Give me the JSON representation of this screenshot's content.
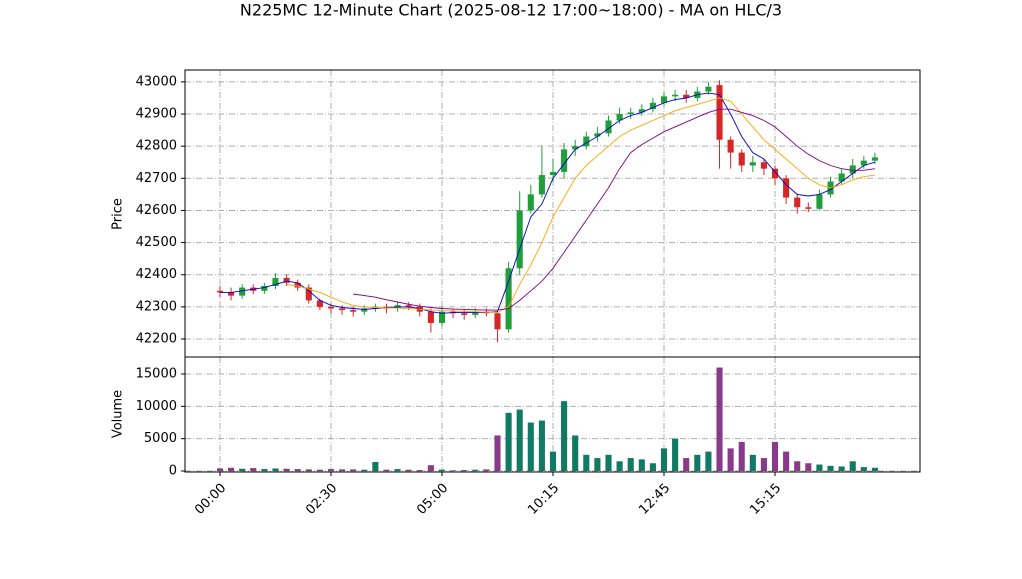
{
  "chart_data": {
    "type": "candlestick",
    "title": "N225MC 12-Minute Chart (2025-08-12 17:00~18:00) - MA on HLC/3",
    "categories": [
      "00:00",
      null,
      null,
      null,
      null,
      null,
      null,
      null,
      null,
      null,
      "02:30",
      null,
      null,
      null,
      null,
      null,
      null,
      null,
      null,
      null,
      "05:00",
      null,
      null,
      null,
      null,
      null,
      null,
      null,
      null,
      null,
      "10:15",
      null,
      null,
      null,
      null,
      null,
      null,
      null,
      null,
      null,
      "12:45",
      null,
      null,
      null,
      null,
      null,
      null,
      null,
      null,
      null,
      "15:15",
      null,
      null,
      null,
      null,
      null,
      null,
      null,
      null,
      null
    ],
    "open": [
      42350,
      42345,
      42335,
      42360,
      42350,
      42365,
      42390,
      42375,
      42360,
      42320,
      42300,
      42295,
      42290,
      42285,
      42295,
      42300,
      42295,
      42305,
      42300,
      42285,
      42250,
      42285,
      42280,
      42275,
      42285,
      42280,
      42230,
      42420,
      42600,
      42650,
      42710,
      42720,
      42790,
      42800,
      42830,
      42840,
      42880,
      42900,
      42905,
      42915,
      42935,
      42955,
      42960,
      42950,
      42970,
      42990,
      42820,
      42780,
      42740,
      42750,
      42730,
      42700,
      42640,
      42610,
      42605,
      42650,
      42690,
      42715,
      42740,
      42755
    ],
    "high": [
      42365,
      42360,
      42370,
      42370,
      42375,
      42405,
      42400,
      42385,
      42370,
      42325,
      42310,
      42305,
      42300,
      42305,
      42310,
      42310,
      42315,
      42315,
      42310,
      42295,
      42300,
      42295,
      42290,
      42295,
      42295,
      42290,
      42440,
      42660,
      42680,
      42800,
      42760,
      42810,
      42820,
      42845,
      42860,
      42895,
      42920,
      42920,
      42930,
      42950,
      42970,
      42975,
      42975,
      42985,
      43000,
      43005,
      42830,
      42790,
      42770,
      42760,
      42740,
      42710,
      42650,
      42625,
      42665,
      42705,
      42730,
      42760,
      42770,
      42780
    ],
    "low": [
      42330,
      42320,
      42325,
      42340,
      42340,
      42355,
      42365,
      42350,
      42310,
      42290,
      42280,
      42275,
      42270,
      42275,
      42285,
      42280,
      42285,
      42290,
      42270,
      42220,
      42240,
      42265,
      42260,
      42265,
      42270,
      42190,
      42220,
      42400,
      42590,
      42640,
      42690,
      42700,
      42770,
      42790,
      42815,
      42830,
      42870,
      42885,
      42895,
      42905,
      42925,
      42940,
      42935,
      42940,
      42960,
      42730,
      42730,
      42720,
      42720,
      42710,
      42680,
      42620,
      42590,
      42595,
      42600,
      42640,
      42680,
      42700,
      42730,
      42745
    ],
    "close": [
      42345,
      42335,
      42360,
      42350,
      42365,
      42390,
      42375,
      42360,
      42320,
      42300,
      42295,
      42290,
      42285,
      42295,
      42300,
      42295,
      42305,
      42300,
      42285,
      42250,
      42285,
      42280,
      42275,
      42285,
      42280,
      42230,
      42420,
      42600,
      42650,
      42710,
      42720,
      42790,
      42800,
      42830,
      42840,
      42880,
      42900,
      42905,
      42915,
      42935,
      42955,
      42960,
      42950,
      42970,
      42985,
      42820,
      42780,
      42740,
      42750,
      42730,
      42700,
      42640,
      42610,
      42605,
      42650,
      42690,
      42715,
      42740,
      42755,
      42765
    ],
    "up_color": "#1f9e3a",
    "down_color": "#d62728",
    "series": [
      {
        "color": "#0000cc",
        "values": [
          42345,
          42345,
          42350,
          42355,
          42360,
          42370,
          42380,
          42375,
          42350,
          42320,
          42305,
          42298,
          42295,
          42292,
          42295,
          42298,
          42300,
          42300,
          42295,
          42285,
          42280,
          42282,
          42282,
          42282,
          42282,
          42285,
          42380,
          42480,
          42580,
          42620,
          42700,
          42745,
          42790,
          42810,
          42830,
          42855,
          42880,
          42895,
          42905,
          42920,
          42935,
          42945,
          42950,
          42960,
          42965,
          42960,
          42900,
          42830,
          42780,
          42760,
          42720,
          42680,
          42650,
          42645,
          42650,
          42665,
          42690,
          42715,
          42740,
          42750
        ]
      },
      {
        "color": "#ffa500",
        "values": [
          null,
          null,
          null,
          null,
          null,
          null,
          42370,
          42365,
          42355,
          42345,
          42330,
          42315,
          42305,
          42300,
          42298,
          42297,
          42296,
          42295,
          42293,
          42290,
          42288,
          42287,
          42286,
          42285,
          42283,
          42282,
          42300,
          42370,
          42430,
          42500,
          42580,
          42640,
          42700,
          42740,
          42770,
          42800,
          42830,
          42850,
          42865,
          42880,
          42895,
          42910,
          42920,
          42930,
          42940,
          42950,
          42940,
          42900,
          42860,
          42820,
          42790,
          42760,
          42730,
          42700,
          42680,
          42670,
          42680,
          42695,
          42705,
          42710
        ]
      },
      {
        "color": "#800080",
        "values": [
          null,
          null,
          null,
          null,
          null,
          null,
          null,
          null,
          null,
          null,
          null,
          null,
          42340,
          42335,
          42330,
          42322,
          42315,
          42308,
          42302,
          42298,
          42295,
          42293,
          42292,
          42291,
          42290,
          42290,
          42295,
          42320,
          42350,
          42380,
          42420,
          42470,
          42520,
          42570,
          42620,
          42670,
          42730,
          42780,
          42805,
          42825,
          42845,
          42860,
          42875,
          42890,
          42905,
          42915,
          42915,
          42905,
          42895,
          42880,
          42860,
          42830,
          42800,
          42775,
          42755,
          42740,
          42730,
          42725,
          42725,
          42730
        ]
      }
    ],
    "ylabel": "Price",
    "ylim": [
      42144,
      43037
    ],
    "yticks": [
      42200,
      42300,
      42400,
      42500,
      42600,
      42700,
      42800,
      42900,
      43000
    ],
    "xlim": [
      -3.15,
      63.06
    ],
    "grid": true,
    "volume": {
      "ylabel": "Volume",
      "up_color": "#117a65",
      "down_color": "#8b3a8b",
      "values": [
        400,
        500,
        350,
        450,
        300,
        400,
        350,
        300,
        250,
        200,
        300,
        250,
        250,
        200,
        1400,
        200,
        300,
        200,
        150,
        900,
        200,
        100,
        150,
        200,
        250,
        5500,
        9000,
        9500,
        7500,
        7800,
        3000,
        10800,
        5500,
        2500,
        2000,
        2500,
        1500,
        2000,
        1800,
        1200,
        3500,
        5000,
        2000,
        2500,
        3000,
        16000,
        3500,
        4500,
        2500,
        2000,
        4500,
        3000,
        1500,
        1200,
        1000,
        800,
        700,
        1500,
        600,
        500
      ],
      "ylim": [
        -155,
        17630
      ],
      "yticks": [
        0,
        5000,
        10000,
        15000
      ]
    }
  }
}
